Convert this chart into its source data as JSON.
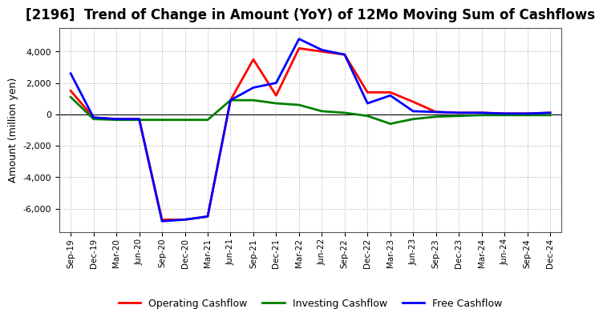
{
  "title": "[2196]  Trend of Change in Amount (YoY) of 12Mo Moving Sum of Cashflows",
  "ylabel": "Amount (million yen)",
  "x_labels": [
    "Sep-19",
    "Dec-19",
    "Mar-20",
    "Jun-20",
    "Sep-20",
    "Dec-20",
    "Mar-21",
    "Jun-21",
    "Sep-21",
    "Dec-21",
    "Mar-22",
    "Jun-22",
    "Sep-22",
    "Dec-22",
    "Mar-23",
    "Jun-23",
    "Sep-23",
    "Dec-23",
    "Mar-24",
    "Jun-24",
    "Sep-24",
    "Dec-24"
  ],
  "operating": [
    1500,
    -200,
    -300,
    -300,
    -6700,
    -6700,
    -6500,
    900,
    3500,
    1200,
    4200,
    4000,
    3800,
    1400,
    1400,
    800,
    150,
    100,
    100,
    50,
    50,
    100
  ],
  "investing": [
    1100,
    -300,
    -350,
    -350,
    -350,
    -350,
    -350,
    900,
    900,
    700,
    600,
    200,
    100,
    -100,
    -600,
    -300,
    -150,
    -100,
    -50,
    -50,
    -50,
    -50
  ],
  "free": [
    2600,
    -200,
    -300,
    -300,
    -6800,
    -6700,
    -6500,
    900,
    1700,
    2000,
    4800,
    4100,
    3800,
    700,
    1200,
    200,
    150,
    100,
    100,
    50,
    50,
    100
  ],
  "operating_color": "#ff0000",
  "investing_color": "#008000",
  "free_color": "#0000ff",
  "ylim": [
    -7500,
    5500
  ],
  "yticks": [
    -6000,
    -4000,
    -2000,
    0,
    2000,
    4000
  ],
  "background_color": "#ffffff",
  "grid_color": "#aaaaaa",
  "title_fontsize": 12,
  "axis_fontsize": 9,
  "legend_fontsize": 9,
  "linewidth": 2.0
}
